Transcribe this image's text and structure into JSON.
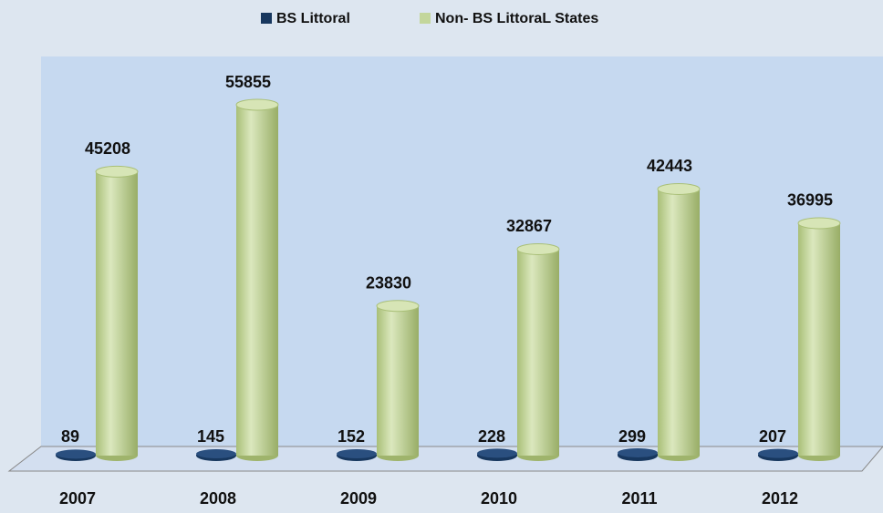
{
  "chart_data": {
    "type": "bar",
    "categories": [
      "2007",
      "2008",
      "2009",
      "2010",
      "2011",
      "2012"
    ],
    "series": [
      {
        "name": "BS Littoral",
        "color": "#17375e",
        "values": [
          89,
          145,
          152,
          228,
          299,
          207
        ]
      },
      {
        "name": "Non- BS LittoraL States",
        "color": "#c3d69b",
        "values": [
          45208,
          55855,
          23830,
          32867,
          42443,
          36995
        ]
      }
    ],
    "legend": "top"
  }
}
